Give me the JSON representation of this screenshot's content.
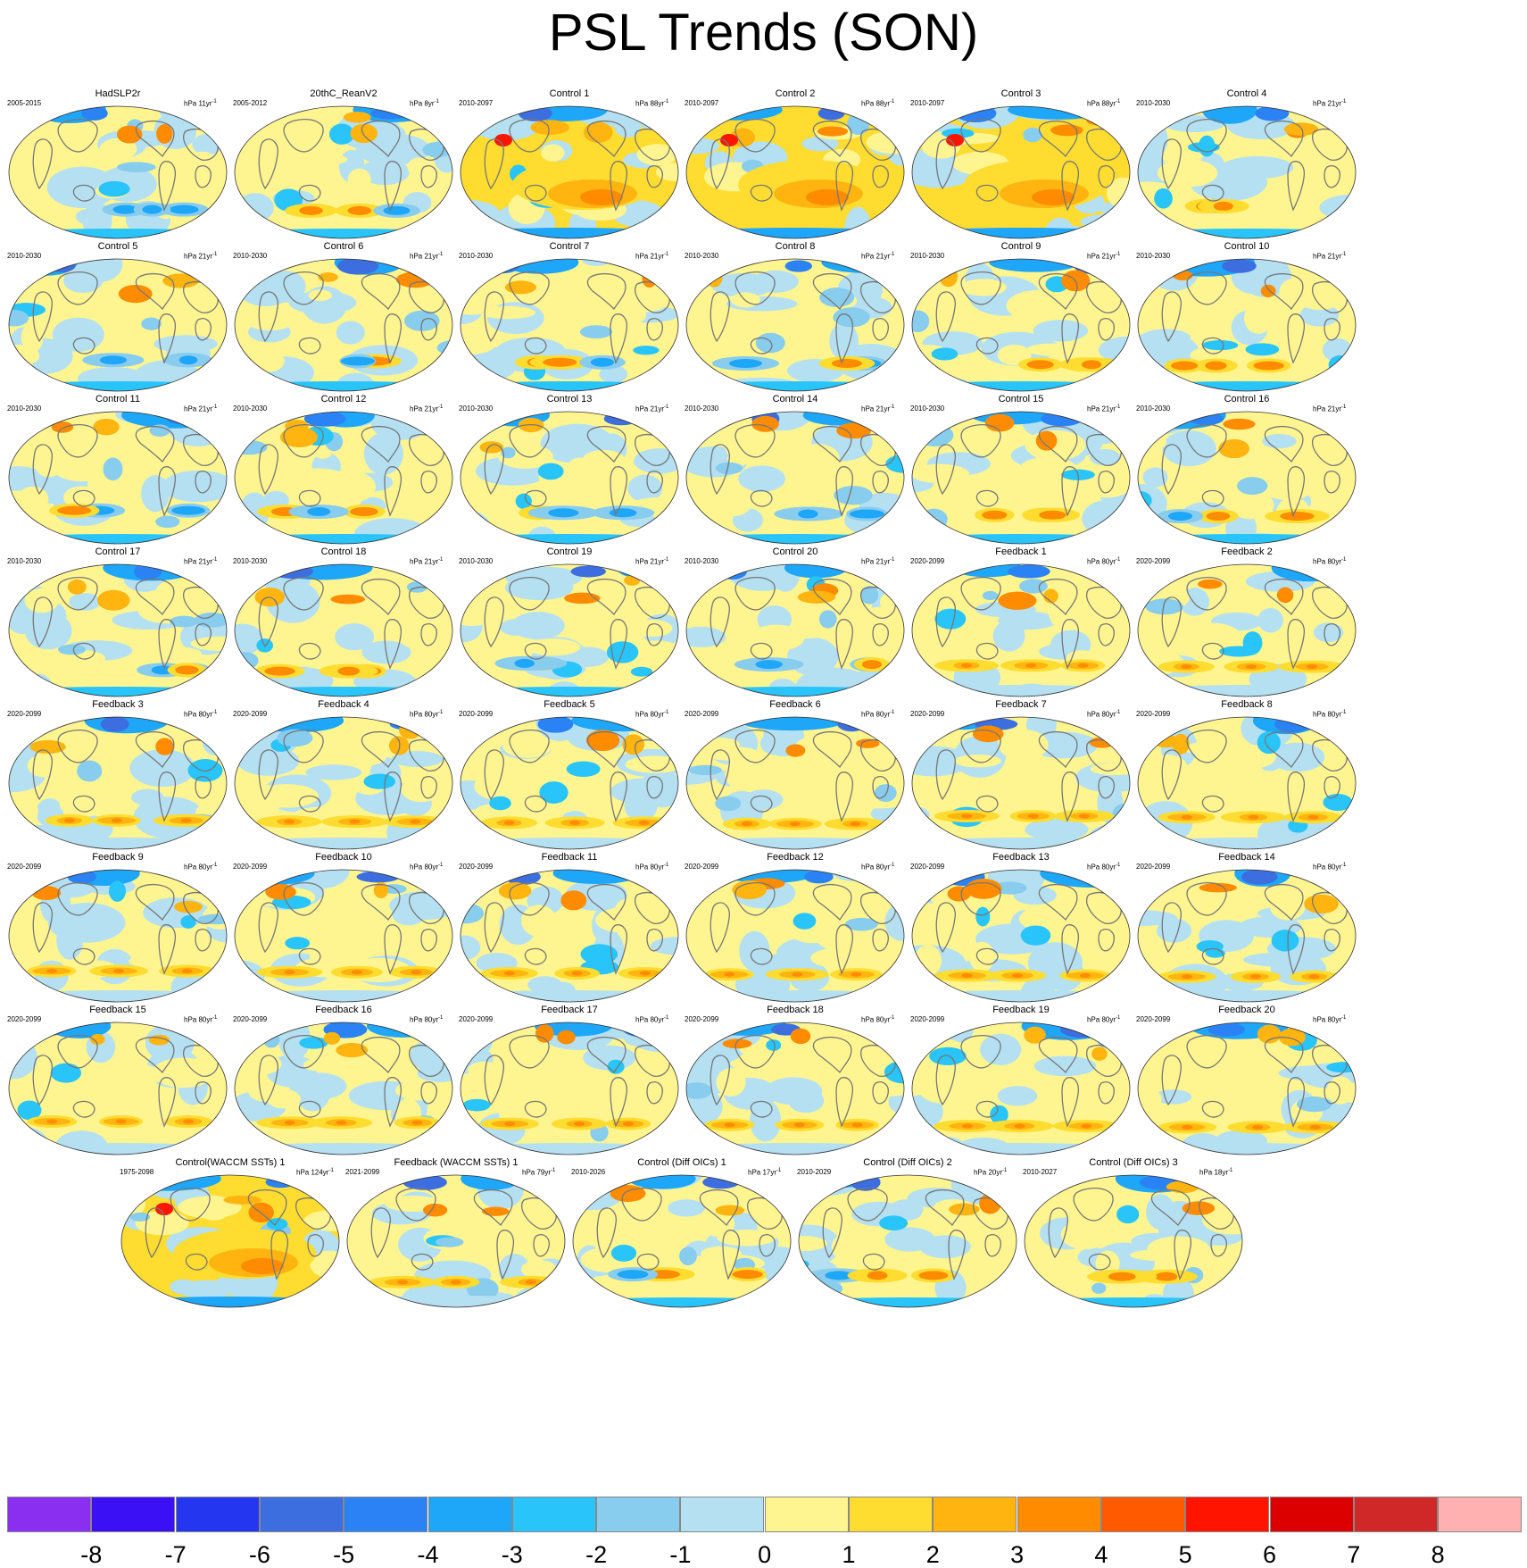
{
  "title": "PSL Trends (SON)",
  "panels": [
    {
      "title": "HadSLP2r",
      "years": "2005-2015",
      "units": "hPa 11yr",
      "type": "obs"
    },
    {
      "title": "20thC_ReanV2",
      "years": "2005-2012",
      "units": "hPa 8yr",
      "type": "obs"
    },
    {
      "title": "Control 1",
      "years": "2010-2097",
      "units": "hPa 88yr",
      "type": "ctrllong"
    },
    {
      "title": "Control 2",
      "years": "2010-2097",
      "units": "hPa 88yr",
      "type": "ctrllong"
    },
    {
      "title": "Control 3",
      "years": "2010-2097",
      "units": "hPa 88yr",
      "type": "ctrllong"
    },
    {
      "title": "Control 4",
      "years": "2010-2030",
      "units": "hPa 21yr",
      "type": "ctrl"
    },
    {
      "title": "Control 5",
      "years": "2010-2030",
      "units": "hPa 21yr",
      "type": "ctrl"
    },
    {
      "title": "Control 6",
      "years": "2010-2030",
      "units": "hPa 21yr",
      "type": "ctrl"
    },
    {
      "title": "Control 7",
      "years": "2010-2030",
      "units": "hPa 21yr",
      "type": "ctrl"
    },
    {
      "title": "Control 8",
      "years": "2010-2030",
      "units": "hPa 21yr",
      "type": "ctrl"
    },
    {
      "title": "Control 9",
      "years": "2010-2030",
      "units": "hPa 21yr",
      "type": "ctrl"
    },
    {
      "title": "Control 10",
      "years": "2010-2030",
      "units": "hPa 21yr",
      "type": "ctrl"
    },
    {
      "title": "Control 11",
      "years": "2010-2030",
      "units": "hPa 21yr",
      "type": "ctrl"
    },
    {
      "title": "Control 12",
      "years": "2010-2030",
      "units": "hPa 21yr",
      "type": "ctrl"
    },
    {
      "title": "Control 13",
      "years": "2010-2030",
      "units": "hPa 21yr",
      "type": "ctrl"
    },
    {
      "title": "Control 14",
      "years": "2010-2030",
      "units": "hPa 21yr",
      "type": "ctrl"
    },
    {
      "title": "Control 15",
      "years": "2010-2030",
      "units": "hPa 21yr",
      "type": "ctrl"
    },
    {
      "title": "Control 16",
      "years": "2010-2030",
      "units": "hPa 21yr",
      "type": "ctrl"
    },
    {
      "title": "Control 17",
      "years": "2010-2030",
      "units": "hPa 21yr",
      "type": "ctrl"
    },
    {
      "title": "Control 18",
      "years": "2010-2030",
      "units": "hPa 21yr",
      "type": "ctrl"
    },
    {
      "title": "Control 19",
      "years": "2010-2030",
      "units": "hPa 21yr",
      "type": "ctrl"
    },
    {
      "title": "Control 20",
      "years": "2010-2030",
      "units": "hPa 21yr",
      "type": "ctrl"
    },
    {
      "title": "Feedback 1",
      "years": "2020-2099",
      "units": "hPa 80yr",
      "type": "fb"
    },
    {
      "title": "Feedback 2",
      "years": "2020-2099",
      "units": "hPa 80yr",
      "type": "fb"
    },
    {
      "title": "Feedback 3",
      "years": "2020-2099",
      "units": "hPa 80yr",
      "type": "fb"
    },
    {
      "title": "Feedback 4",
      "years": "2020-2099",
      "units": "hPa 80yr",
      "type": "fb"
    },
    {
      "title": "Feedback 5",
      "years": "2020-2099",
      "units": "hPa 80yr",
      "type": "fb"
    },
    {
      "title": "Feedback 6",
      "years": "2020-2099",
      "units": "hPa 80yr",
      "type": "fb"
    },
    {
      "title": "Feedback 7",
      "years": "2020-2099",
      "units": "hPa 80yr",
      "type": "fb"
    },
    {
      "title": "Feedback 8",
      "years": "2020-2099",
      "units": "hPa 80yr",
      "type": "fb"
    },
    {
      "title": "Feedback 9",
      "years": "2020-2099",
      "units": "hPa 80yr",
      "type": "fb"
    },
    {
      "title": "Feedback 10",
      "years": "2020-2099",
      "units": "hPa 80yr",
      "type": "fb"
    },
    {
      "title": "Feedback 11",
      "years": "2020-2099",
      "units": "hPa 80yr",
      "type": "fb"
    },
    {
      "title": "Feedback 12",
      "years": "2020-2099",
      "units": "hPa 80yr",
      "type": "fb"
    },
    {
      "title": "Feedback 13",
      "years": "2020-2099",
      "units": "hPa 80yr",
      "type": "fb"
    },
    {
      "title": "Feedback 14",
      "years": "2020-2099",
      "units": "hPa 80yr",
      "type": "fb"
    },
    {
      "title": "Feedback 15",
      "years": "2020-2099",
      "units": "hPa 80yr",
      "type": "fb"
    },
    {
      "title": "Feedback 16",
      "years": "2020-2099",
      "units": "hPa 80yr",
      "type": "fb"
    },
    {
      "title": "Feedback 17",
      "years": "2020-2099",
      "units": "hPa 80yr",
      "type": "fb"
    },
    {
      "title": "Feedback 18",
      "years": "2020-2099",
      "units": "hPa 80yr",
      "type": "fb"
    },
    {
      "title": "Feedback 19",
      "years": "2020-2099",
      "units": "hPa 80yr",
      "type": "fb"
    },
    {
      "title": "Feedback 20",
      "years": "2020-2099",
      "units": "hPa 80yr",
      "type": "fb"
    },
    {
      "title": "Control(WACCM SSTs) 1",
      "years": "1975-2098",
      "units": "hPa 124yr",
      "type": "ctrllong"
    },
    {
      "title": "Feedback (WACCM SSTs) 1",
      "years": "2021-2099",
      "units": "hPa 79yr",
      "type": "fb"
    },
    {
      "title": "Control (Diff OICs) 1",
      "years": "2010-2026",
      "units": "hPa 17yr",
      "type": "ctrl"
    },
    {
      "title": "Control (Diff OICs) 2",
      "years": "2010-2029",
      "units": "hPa 20yr",
      "type": "ctrl"
    },
    {
      "title": "Control (Diff OICs) 3",
      "years": "2010-2027",
      "units": "hPa 18yr",
      "type": "ctrl"
    }
  ],
  "colorbar": {
    "labels": [
      "-8",
      "-7",
      "-6",
      "-5",
      "-4",
      "-3",
      "-2",
      "-1",
      "0",
      "1",
      "2",
      "3",
      "4",
      "5",
      "6",
      "7",
      "8"
    ],
    "colors": [
      "#8a2ef0",
      "#3c10f5",
      "#2436f0",
      "#3c6ee0",
      "#2a82f4",
      "#1ea6f8",
      "#28c4fa",
      "#88ccee",
      "#b4e0f2",
      "#fff590",
      "#ffdc30",
      "#ffb410",
      "#ff8c00",
      "#ff5a00",
      "#ff1400",
      "#dc0000",
      "#d02828",
      "#ffb0b0"
    ]
  }
}
